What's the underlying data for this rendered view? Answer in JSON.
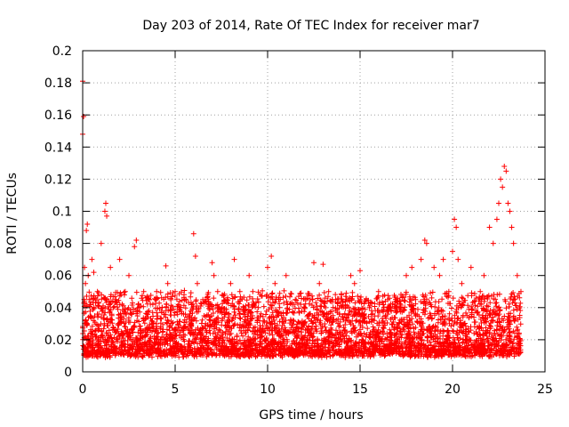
{
  "chart_data": {
    "type": "scatter",
    "title": "Day 203 of 2014, Rate Of TEC Index for receiver mar7",
    "xlabel": "GPS time / hours",
    "ylabel": "ROTI / TECUs",
    "xlim": [
      0,
      25
    ],
    "ylim": [
      0,
      0.2
    ],
    "xticks": [
      "0",
      "5",
      "10",
      "15",
      "20",
      "25"
    ],
    "yticks": [
      "0",
      "0.02",
      "0.04",
      "0.06",
      "0.08",
      "0.1",
      "0.12",
      "0.14",
      "0.16",
      "0.18",
      "0.2"
    ],
    "grid": true,
    "marker": "+",
    "series": [
      {
        "name": "ROTI",
        "color": "#ff0000",
        "x": [
          0.0,
          0.0,
          0.05,
          0.1,
          0.15,
          0.2,
          0.25,
          0.3,
          0.35,
          0.5,
          0.6,
          0.8,
          1.0,
          1.2,
          1.25,
          1.3,
          1.5,
          1.8,
          2.0,
          2.3,
          2.5,
          2.8,
          2.9,
          3.0,
          3.3,
          3.6,
          4.0,
          4.3,
          4.5,
          4.6,
          5.0,
          5.3,
          5.5,
          5.8,
          6.0,
          6.1,
          6.2,
          6.5,
          7.0,
          7.1,
          7.3,
          7.8,
          8.0,
          8.2,
          8.5,
          8.7,
          9.0,
          9.2,
          9.5,
          10.0,
          10.2,
          10.4,
          10.6,
          11.0,
          11.5,
          12.0,
          12.5,
          12.8,
          13.0,
          13.3,
          13.5,
          14.0,
          14.5,
          14.7,
          15.0,
          15.5,
          16.0,
          16.5,
          17.0,
          17.5,
          17.8,
          18.0,
          18.3,
          18.5,
          18.6,
          19.0,
          19.3,
          19.5,
          19.8,
          20.0,
          20.1,
          20.2,
          20.3,
          20.5,
          21.0,
          21.5,
          21.7,
          22.0,
          22.2,
          22.4,
          22.5,
          22.6,
          22.7,
          22.8,
          22.9,
          23.0,
          23.1,
          23.2,
          23.3,
          23.5,
          23.7
        ],
        "y": [
          0.181,
          0.148,
          0.159,
          0.065,
          0.055,
          0.088,
          0.092,
          0.06,
          0.045,
          0.07,
          0.062,
          0.05,
          0.08,
          0.1,
          0.105,
          0.097,
          0.065,
          0.045,
          0.07,
          0.05,
          0.06,
          0.078,
          0.082,
          0.042,
          0.05,
          0.045,
          0.05,
          0.04,
          0.066,
          0.055,
          0.05,
          0.04,
          0.045,
          0.035,
          0.086,
          0.072,
          0.055,
          0.045,
          0.068,
          0.06,
          0.05,
          0.045,
          0.055,
          0.07,
          0.05,
          0.04,
          0.06,
          0.05,
          0.04,
          0.065,
          0.072,
          0.055,
          0.045,
          0.06,
          0.045,
          0.04,
          0.068,
          0.055,
          0.067,
          0.05,
          0.045,
          0.048,
          0.06,
          0.055,
          0.063,
          0.04,
          0.05,
          0.045,
          0.04,
          0.06,
          0.065,
          0.045,
          0.07,
          0.082,
          0.08,
          0.065,
          0.06,
          0.07,
          0.05,
          0.075,
          0.095,
          0.09,
          0.07,
          0.055,
          0.065,
          0.05,
          0.06,
          0.09,
          0.08,
          0.095,
          0.105,
          0.12,
          0.115,
          0.128,
          0.125,
          0.105,
          0.1,
          0.09,
          0.08,
          0.06,
          0.05
        ]
      }
    ]
  }
}
